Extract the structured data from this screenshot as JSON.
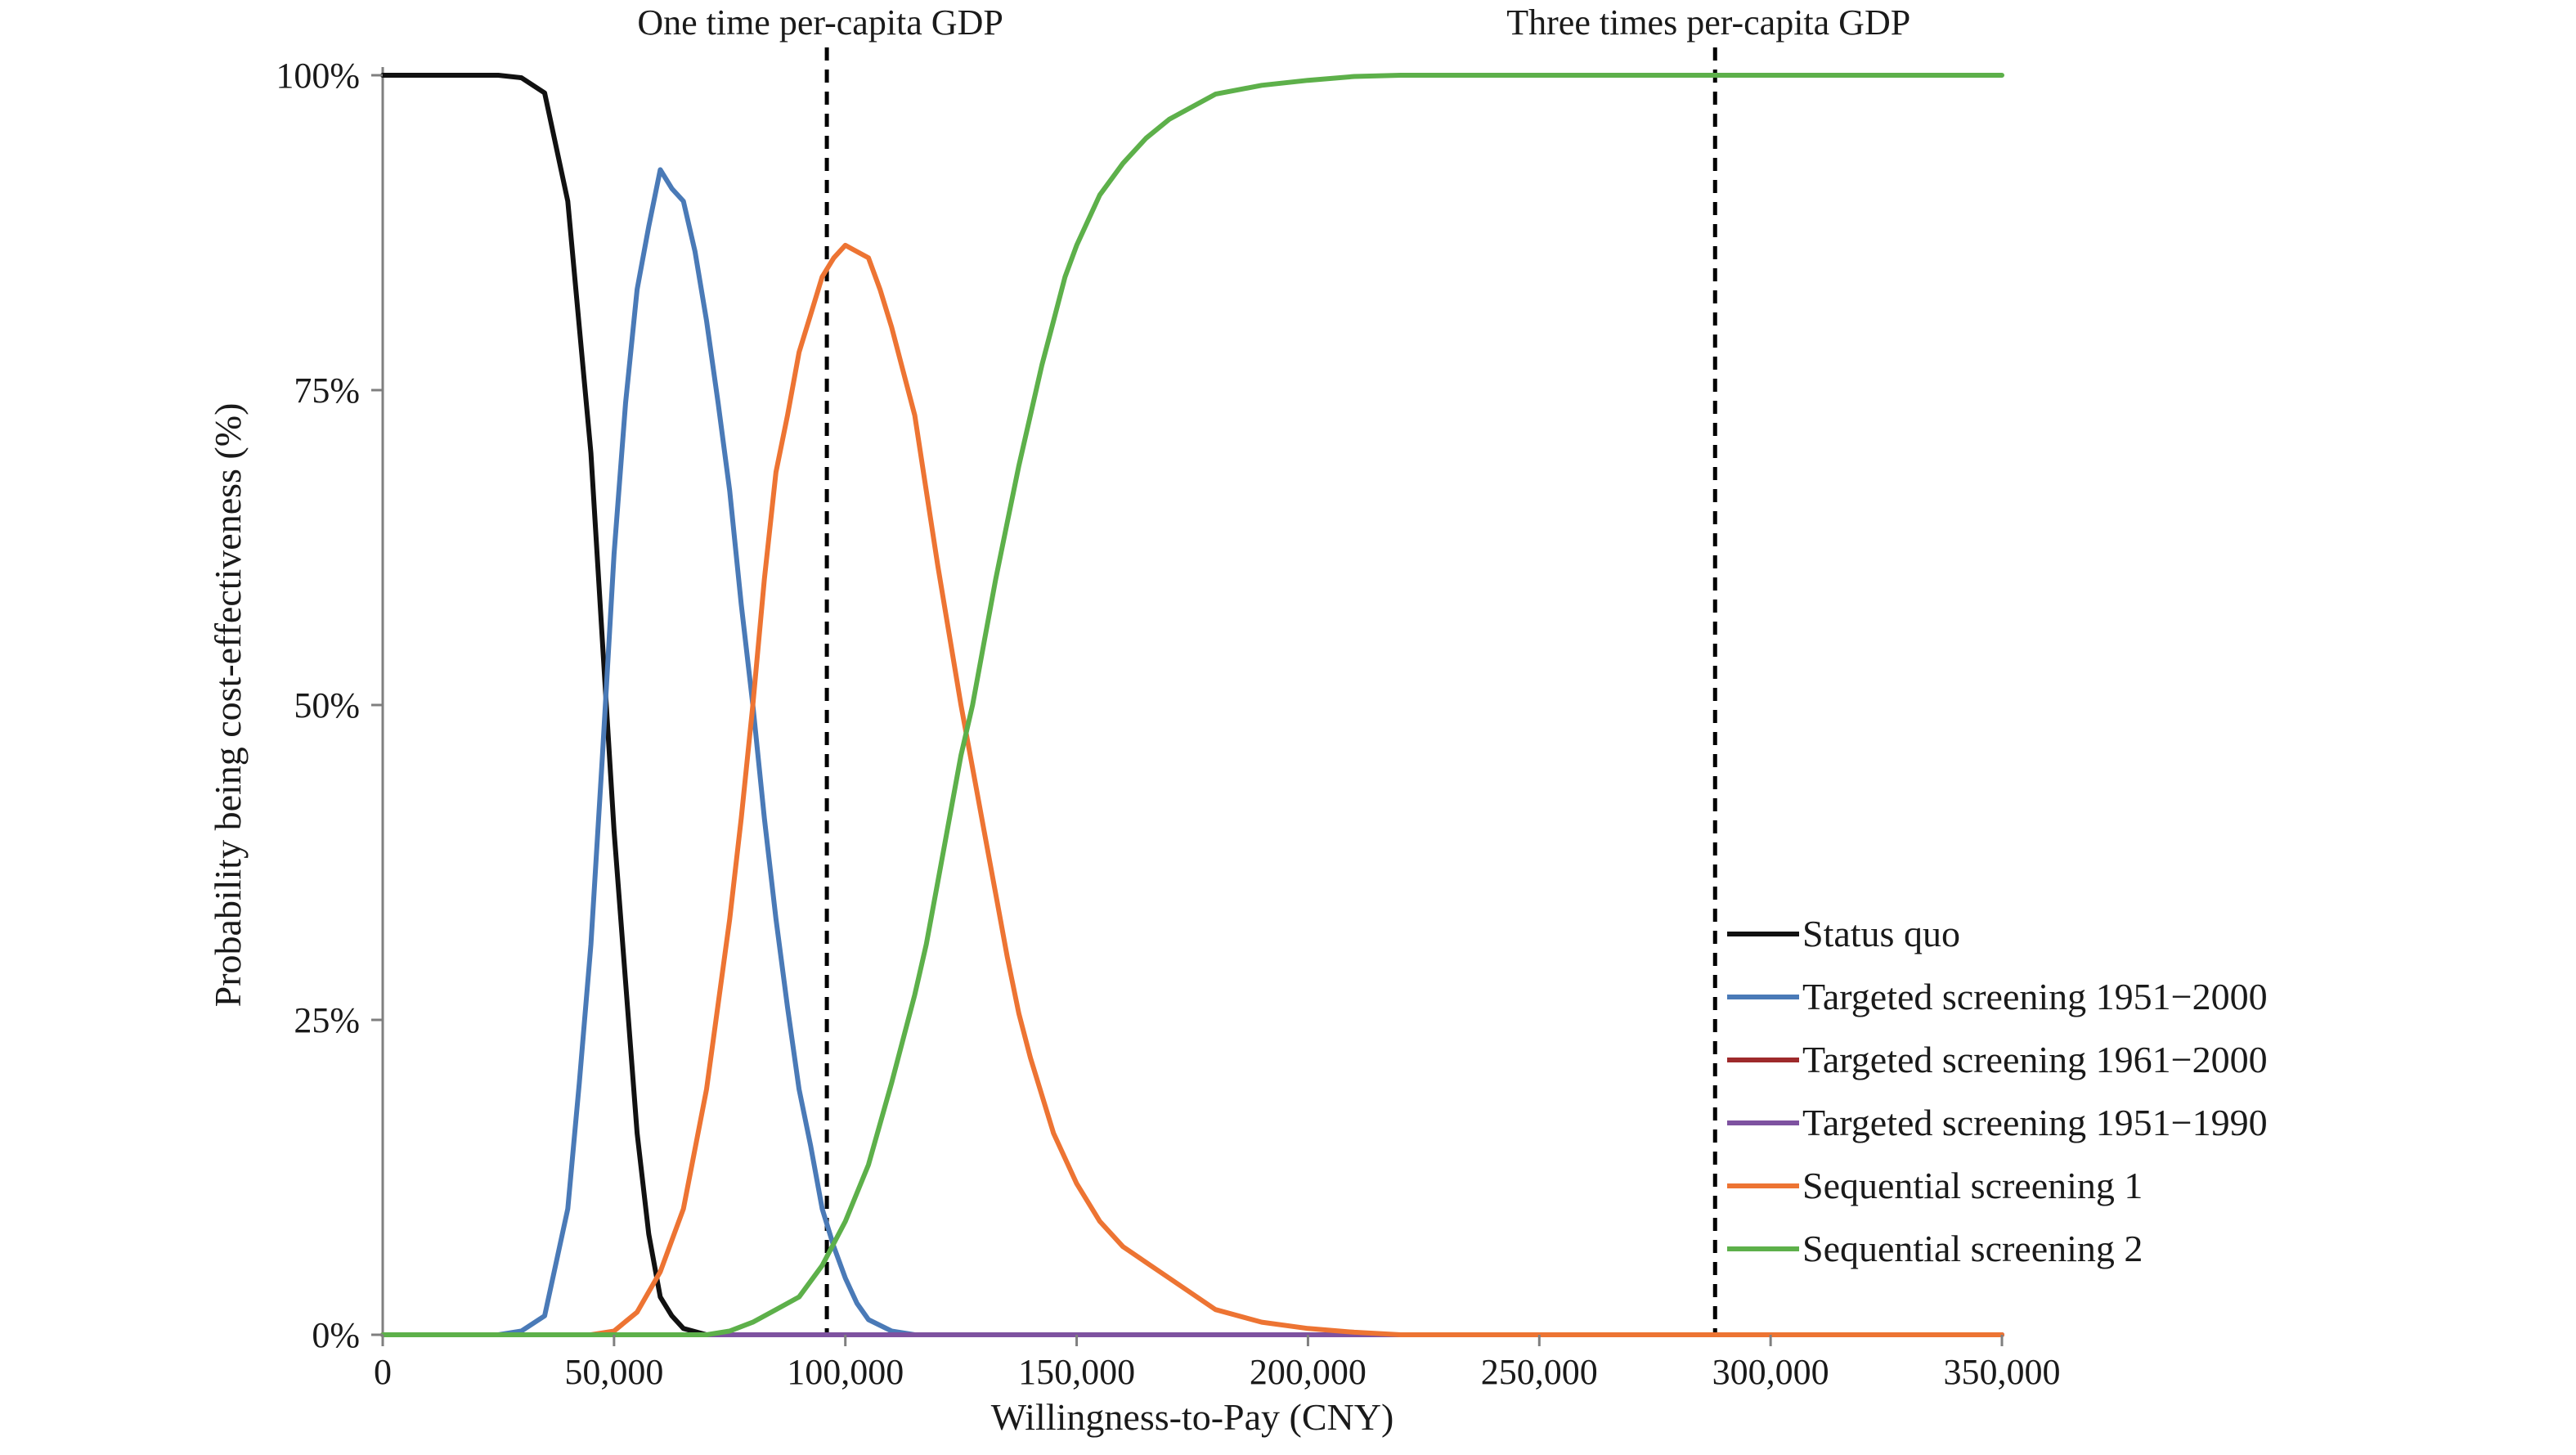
{
  "chart_data": {
    "type": "line",
    "xlabel": "Willingness-to-Pay (CNY)",
    "ylabel": "Probability being cost-effectiveness (%)",
    "xlim": [
      0,
      350000
    ],
    "ylim": [
      0,
      100
    ],
    "x_ticks": [
      0,
      50000,
      100000,
      150000,
      200000,
      250000,
      300000,
      350000
    ],
    "x_tick_labels": [
      "0",
      "50,000",
      "100,000",
      "150,000",
      "200,000",
      "250,000",
      "300,000",
      "350,000"
    ],
    "y_ticks": [
      0,
      25,
      50,
      75,
      100
    ],
    "y_tick_labels": [
      "0%",
      "25%",
      "50%",
      "75%",
      "100%"
    ],
    "grid": false,
    "legend_position": "bottom-right",
    "reference_lines": [
      {
        "x": 96000,
        "label": "One time per-capita GDP",
        "style": "dashed",
        "color": "#000000"
      },
      {
        "x": 288000,
        "label": "Three times per-capita GDP",
        "style": "dashed",
        "color": "#000000"
      }
    ],
    "series": [
      {
        "name": "Status quo",
        "color": "#111111",
        "points": [
          [
            0,
            100
          ],
          [
            5000,
            100
          ],
          [
            10000,
            100
          ],
          [
            15000,
            100
          ],
          [
            20000,
            100
          ],
          [
            25000,
            100
          ],
          [
            30000,
            99.8
          ],
          [
            35000,
            98.6
          ],
          [
            40000,
            90
          ],
          [
            42500,
            80
          ],
          [
            45000,
            70
          ],
          [
            47500,
            55
          ],
          [
            50000,
            40
          ],
          [
            52500,
            28
          ],
          [
            55000,
            16
          ],
          [
            57500,
            8
          ],
          [
            60000,
            3
          ],
          [
            62500,
            1.5
          ],
          [
            65000,
            0.5
          ],
          [
            70000,
            0
          ],
          [
            75000,
            0
          ],
          [
            80000,
            0
          ],
          [
            350000,
            0
          ]
        ]
      },
      {
        "name": "Targeted screening 1951−2000",
        "color": "#4a7ab7",
        "points": [
          [
            0,
            0
          ],
          [
            25000,
            0
          ],
          [
            30000,
            0.3
          ],
          [
            35000,
            1.5
          ],
          [
            40000,
            10
          ],
          [
            42500,
            20
          ],
          [
            45000,
            31
          ],
          [
            47500,
            46
          ],
          [
            50000,
            62
          ],
          [
            52500,
            74
          ],
          [
            55000,
            83
          ],
          [
            57500,
            88
          ],
          [
            60000,
            92.5
          ],
          [
            62500,
            91
          ],
          [
            65000,
            90
          ],
          [
            67500,
            86
          ],
          [
            70000,
            80.5
          ],
          [
            72500,
            74
          ],
          [
            75000,
            67
          ],
          [
            77500,
            58
          ],
          [
            80000,
            50
          ],
          [
            82500,
            41
          ],
          [
            85000,
            33
          ],
          [
            87500,
            26
          ],
          [
            90000,
            19.5
          ],
          [
            92500,
            15
          ],
          [
            95000,
            10
          ],
          [
            97500,
            7
          ],
          [
            100000,
            4.5
          ],
          [
            102500,
            2.5
          ],
          [
            105000,
            1.2
          ],
          [
            110000,
            0.3
          ],
          [
            115000,
            0
          ],
          [
            350000,
            0
          ]
        ]
      },
      {
        "name": "Targeted screening 1961−2000",
        "color": "#9e2a2b",
        "points": [
          [
            0,
            0
          ],
          [
            100000,
            0
          ],
          [
            200000,
            0
          ],
          [
            300000,
            0
          ],
          [
            350000,
            0
          ]
        ]
      },
      {
        "name": "Targeted screening 1951−1990",
        "color": "#7e52a0",
        "points": [
          [
            0,
            0
          ],
          [
            100000,
            0
          ],
          [
            200000,
            0
          ],
          [
            300000,
            0
          ],
          [
            350000,
            0
          ]
        ]
      },
      {
        "name": "Sequential screening 1",
        "color": "#ed7433",
        "points": [
          [
            0,
            0
          ],
          [
            45000,
            0
          ],
          [
            50000,
            0.3
          ],
          [
            55000,
            1.8
          ],
          [
            60000,
            5
          ],
          [
            65000,
            10
          ],
          [
            70000,
            19.5
          ],
          [
            75000,
            33
          ],
          [
            77500,
            41
          ],
          [
            80000,
            50
          ],
          [
            82500,
            60
          ],
          [
            85000,
            68.5
          ],
          [
            87500,
            73
          ],
          [
            90000,
            78
          ],
          [
            92500,
            81
          ],
          [
            95000,
            84
          ],
          [
            97500,
            85.5
          ],
          [
            100000,
            86.5
          ],
          [
            102500,
            86
          ],
          [
            105000,
            85.5
          ],
          [
            107500,
            83
          ],
          [
            110000,
            80
          ],
          [
            112500,
            76.5
          ],
          [
            115000,
            73
          ],
          [
            117500,
            67
          ],
          [
            120000,
            61
          ],
          [
            122500,
            55.5
          ],
          [
            125000,
            50
          ],
          [
            127500,
            45
          ],
          [
            130000,
            40
          ],
          [
            132500,
            35
          ],
          [
            135000,
            30
          ],
          [
            137500,
            25.5
          ],
          [
            140000,
            22
          ],
          [
            145000,
            16
          ],
          [
            150000,
            12
          ],
          [
            155000,
            9
          ],
          [
            160000,
            7
          ],
          [
            170000,
            4.5
          ],
          [
            180000,
            2
          ],
          [
            190000,
            1
          ],
          [
            200000,
            0.5
          ],
          [
            210000,
            0.2
          ],
          [
            220000,
            0
          ],
          [
            350000,
            0
          ]
        ]
      },
      {
        "name": "Sequential screening 2",
        "color": "#5db04a",
        "points": [
          [
            0,
            0
          ],
          [
            70000,
            0
          ],
          [
            75000,
            0.3
          ],
          [
            80000,
            1
          ],
          [
            85000,
            2
          ],
          [
            90000,
            3
          ],
          [
            95000,
            5.5
          ],
          [
            100000,
            9
          ],
          [
            105000,
            13.5
          ],
          [
            110000,
            20
          ],
          [
            115000,
            27
          ],
          [
            117500,
            31
          ],
          [
            120000,
            36
          ],
          [
            122500,
            41
          ],
          [
            125000,
            46
          ],
          [
            127500,
            50
          ],
          [
            130000,
            55
          ],
          [
            132500,
            60
          ],
          [
            135000,
            64.5
          ],
          [
            137500,
            69
          ],
          [
            140000,
            73
          ],
          [
            142500,
            77
          ],
          [
            145000,
            80.5
          ],
          [
            147500,
            84
          ],
          [
            150000,
            86.5
          ],
          [
            152500,
            88.5
          ],
          [
            155000,
            90.5
          ],
          [
            160000,
            93
          ],
          [
            165000,
            95
          ],
          [
            170000,
            96.5
          ],
          [
            175000,
            97.5
          ],
          [
            180000,
            98.5
          ],
          [
            190000,
            99.2
          ],
          [
            200000,
            99.6
          ],
          [
            210000,
            99.9
          ],
          [
            220000,
            100
          ],
          [
            350000,
            100
          ]
        ]
      }
    ]
  }
}
